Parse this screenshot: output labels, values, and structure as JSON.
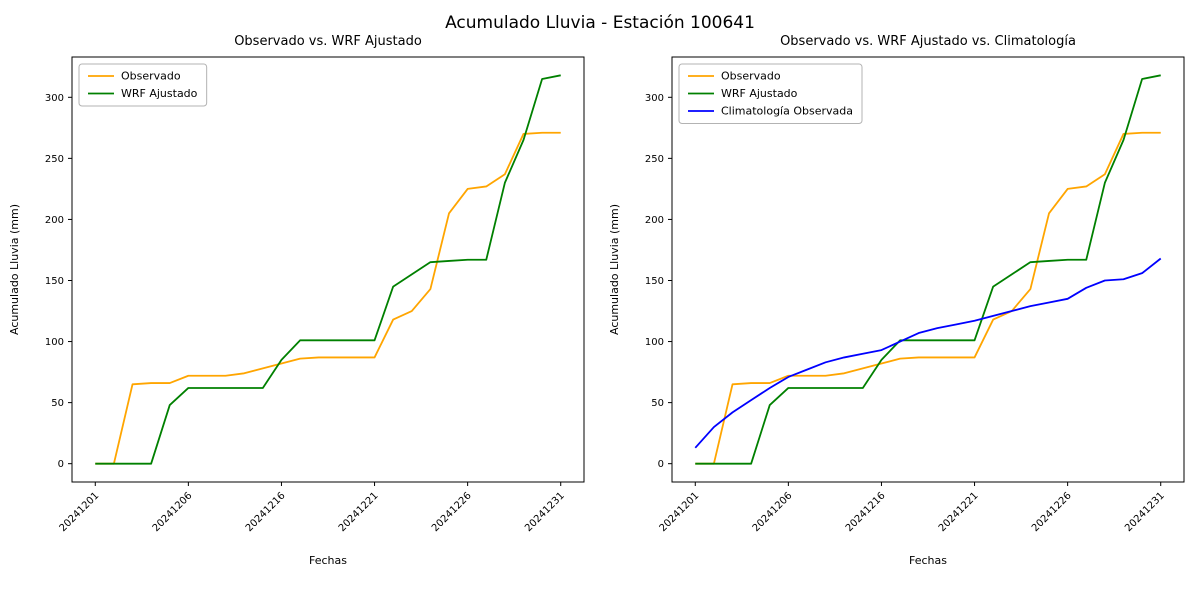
{
  "figure": {
    "title": "Acumulado Lluvia - Estación 100641"
  },
  "colors": {
    "observado": "#ffa500",
    "wrf": "#008000",
    "climatologia": "#0000ff"
  },
  "chart_data": [
    {
      "type": "line",
      "title": "Observado vs. WRF Ajustado",
      "xlabel": "Fechas",
      "ylabel": "Acumulado Lluvia (mm)",
      "n_points": 26,
      "ylim": [
        -15,
        333
      ],
      "y_ticks": [
        0,
        50,
        100,
        150,
        200,
        250,
        300
      ],
      "x_tick_indices": [
        0,
        5,
        10,
        15,
        20,
        25
      ],
      "x_tick_labels": [
        "20241201",
        "20241206",
        "20241216",
        "20241221",
        "20241226",
        "20241231"
      ],
      "grid": false,
      "legend_position": "upper left",
      "series": [
        {
          "name": "Observado",
          "color": "#ffa500",
          "values": [
            0,
            0,
            65,
            66,
            66,
            72,
            72,
            72,
            74,
            78,
            82,
            86,
            87,
            87,
            87,
            87,
            118,
            125,
            143,
            205,
            225,
            227,
            237,
            270,
            271,
            271
          ]
        },
        {
          "name": "WRF Ajustado",
          "color": "#008000",
          "values": [
            0,
            0,
            0,
            0,
            48,
            62,
            62,
            62,
            62,
            62,
            85,
            101,
            101,
            101,
            101,
            101,
            145,
            155,
            165,
            166,
            167,
            167,
            230,
            265,
            315,
            318
          ]
        }
      ]
    },
    {
      "type": "line",
      "title": "Observado vs. WRF Ajustado vs. Climatología",
      "xlabel": "Fechas",
      "ylabel": "Acumulado Lluvia (mm)",
      "n_points": 26,
      "ylim": [
        -15,
        333
      ],
      "y_ticks": [
        0,
        50,
        100,
        150,
        200,
        250,
        300
      ],
      "x_tick_indices": [
        0,
        5,
        10,
        15,
        20,
        25
      ],
      "x_tick_labels": [
        "20241201",
        "20241206",
        "20241216",
        "20241221",
        "20241226",
        "20241231"
      ],
      "grid": false,
      "legend_position": "upper left",
      "series": [
        {
          "name": "Observado",
          "color": "#ffa500",
          "values": [
            0,
            0,
            65,
            66,
            66,
            72,
            72,
            72,
            74,
            78,
            82,
            86,
            87,
            87,
            87,
            87,
            118,
            125,
            143,
            205,
            225,
            227,
            237,
            270,
            271,
            271
          ]
        },
        {
          "name": "WRF Ajustado",
          "color": "#008000",
          "values": [
            0,
            0,
            0,
            0,
            48,
            62,
            62,
            62,
            62,
            62,
            85,
            101,
            101,
            101,
            101,
            101,
            145,
            155,
            165,
            166,
            167,
            167,
            230,
            265,
            315,
            318
          ]
        },
        {
          "name": "Climatología Observada",
          "color": "#0000ff",
          "values": [
            13,
            30,
            42,
            52,
            62,
            71,
            77,
            83,
            87,
            90,
            93,
            100,
            107,
            111,
            114,
            117,
            121,
            125,
            129,
            132,
            135,
            144,
            150,
            151,
            156,
            168
          ]
        }
      ]
    }
  ]
}
